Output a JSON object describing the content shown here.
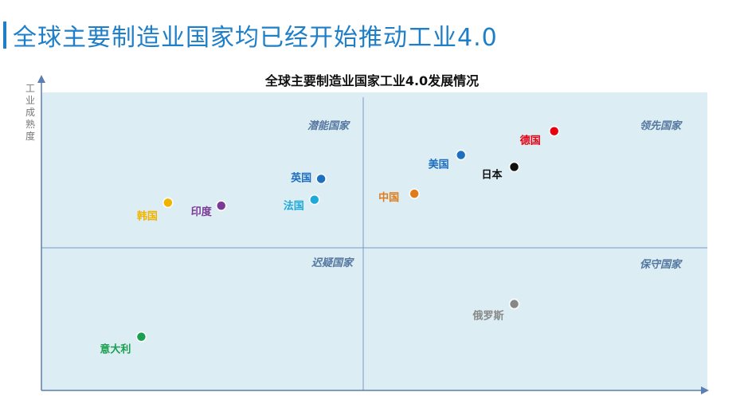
{
  "page": {
    "heading": "全球主要制造业国家均已经开始推动工业4.0"
  },
  "chart_data": {
    "type": "scatter",
    "title": "全球主要制造业国家工业4.0发展情况",
    "xlabel": "",
    "ylabel": "工业成熟度",
    "grid": false,
    "quadrants": [
      {
        "name": "潜能国家"
      },
      {
        "name": "领先国家"
      },
      {
        "name": "迟疑国家"
      },
      {
        "name": "保守国家"
      }
    ],
    "points": [
      {
        "name": "德国",
        "x": 0.77,
        "y": 0.87,
        "color": "#e60012"
      },
      {
        "name": "日本",
        "x": 0.71,
        "y": 0.75,
        "color": "#111111"
      },
      {
        "name": "美国",
        "x": 0.63,
        "y": 0.79,
        "color": "#1e6fc0"
      },
      {
        "name": "中国",
        "x": 0.56,
        "y": 0.66,
        "color": "#e07b1a"
      },
      {
        "name": "英国",
        "x": 0.42,
        "y": 0.71,
        "color": "#1e6fc0"
      },
      {
        "name": "法国",
        "x": 0.41,
        "y": 0.64,
        "color": "#1fa9d8"
      },
      {
        "name": "印度",
        "x": 0.27,
        "y": 0.62,
        "color": "#7b3a96"
      },
      {
        "name": "韩国",
        "x": 0.19,
        "y": 0.63,
        "color": "#f0b400"
      },
      {
        "name": "俄罗斯",
        "x": 0.71,
        "y": 0.29,
        "color": "#888888"
      },
      {
        "name": "意大利",
        "x": 0.15,
        "y": 0.18,
        "color": "#1aa050"
      }
    ],
    "colors": {
      "plot_bg": "#dcedf3",
      "axis": "#5a7fb0",
      "divider": "#7a9cc4"
    }
  }
}
